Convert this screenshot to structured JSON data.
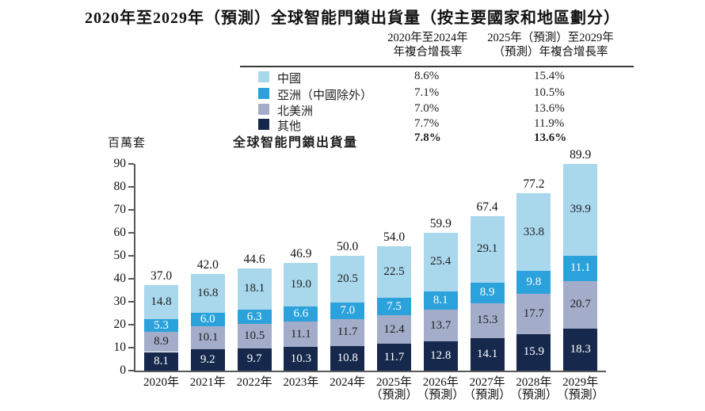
{
  "title": "2020年至2029年（預測）全球智能門鎖出貨量（按主要國家和地區劃分）",
  "cagr_table": {
    "col1_header_line1": "2020年至2024年",
    "col1_header_line2": "年複合增長率",
    "col2_header_line1": "2025年（預測）至2029年",
    "col2_header_line2": "（預測）年複合增長率",
    "rows": [
      {
        "key": "china",
        "label": "中國",
        "color": "#A9D7EC",
        "cagr1": "8.6%",
        "cagr2": "15.4%"
      },
      {
        "key": "asia-ex-china",
        "label": "亞洲（中國除外）",
        "color": "#2BA2DB",
        "cagr1": "7.1%",
        "cagr2": "10.5%"
      },
      {
        "key": "north-america",
        "label": "北美洲",
        "color": "#A3ADC9",
        "cagr1": "7.0%",
        "cagr2": "13.6%"
      },
      {
        "key": "others",
        "label": "其他",
        "color": "#16294C",
        "cagr1": "7.7%",
        "cagr2": "11.9%"
      }
    ],
    "total_row": {
      "label": "全球智能門鎖出貨量",
      "cagr1": "7.8%",
      "cagr2": "13.6%"
    }
  },
  "chart_data": {
    "type": "bar",
    "stacked": true,
    "unit_label": "百萬套",
    "ylim": [
      0,
      90
    ],
    "y_ticks": [
      0,
      10,
      20,
      30,
      40,
      50,
      60,
      70,
      80,
      90
    ],
    "grid": false,
    "legend_position": "top-table",
    "categories": [
      {
        "label": "2020年",
        "sublabel": ""
      },
      {
        "label": "2021年",
        "sublabel": ""
      },
      {
        "label": "2022年",
        "sublabel": ""
      },
      {
        "label": "2023年",
        "sublabel": ""
      },
      {
        "label": "2024年",
        "sublabel": ""
      },
      {
        "label": "2025年",
        "sublabel": "（預測）"
      },
      {
        "label": "2026年",
        "sublabel": "（預測）"
      },
      {
        "label": "2027年",
        "sublabel": "（預測）"
      },
      {
        "label": "2028年",
        "sublabel": "（預測）"
      },
      {
        "label": "2029年",
        "sublabel": "（預測）"
      }
    ],
    "series_bottom_to_top": [
      {
        "key": "others",
        "name": "其他",
        "color": "#16294C",
        "label_color": "#ffffff",
        "values": [
          8.1,
          9.2,
          9.7,
          10.3,
          10.8,
          11.7,
          12.8,
          14.1,
          15.9,
          18.3
        ]
      },
      {
        "key": "north-america",
        "name": "北美洲",
        "color": "#A3ADC9",
        "label_color": "#1f1f1f",
        "values": [
          8.9,
          10.1,
          10.5,
          11.1,
          11.7,
          12.4,
          13.7,
          15.3,
          17.7,
          20.7
        ]
      },
      {
        "key": "asia-ex-china",
        "name": "亞洲（中國除外）",
        "color": "#2BA2DB",
        "label_color": "#ffffff",
        "values": [
          5.3,
          6.0,
          6.3,
          6.6,
          7.0,
          7.5,
          8.1,
          8.9,
          9.8,
          11.1
        ]
      },
      {
        "key": "china",
        "name": "中國",
        "color": "#A9D7EC",
        "label_color": "#1f1f1f",
        "values": [
          14.8,
          16.8,
          18.1,
          19.0,
          20.5,
          22.5,
          25.4,
          29.1,
          33.8,
          39.9
        ]
      }
    ],
    "totals": [
      37.0,
      42.0,
      44.6,
      46.9,
      50.0,
      54.0,
      59.9,
      67.4,
      77.2,
      89.9
    ]
  }
}
